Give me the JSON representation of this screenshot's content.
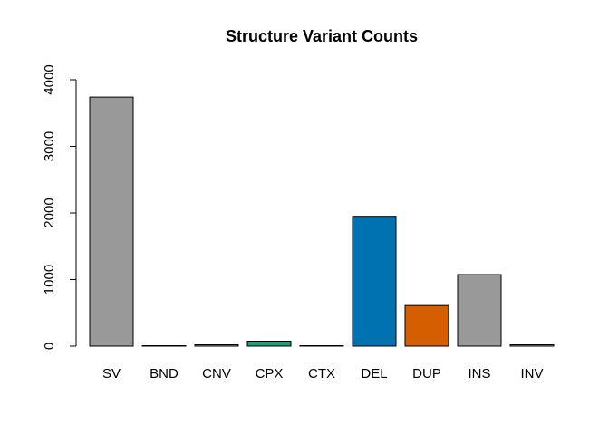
{
  "chart_data": {
    "type": "bar",
    "title": "Structure Variant Counts",
    "xlabel": "",
    "ylabel": "",
    "categories": [
      "SV",
      "BND",
      "CNV",
      "CPX",
      "CTX",
      "DEL",
      "DUP",
      "INS",
      "INV"
    ],
    "values": [
      3740,
      5,
      20,
      75,
      5,
      1950,
      610,
      1075,
      20
    ],
    "colors": [
      "#999999",
      "#999999",
      "#999999",
      "#1b9e77",
      "#999999",
      "#0072b2",
      "#d55e00",
      "#999999",
      "#999999"
    ],
    "ylim": [
      0,
      4000
    ],
    "yticks": [
      "0",
      "1000",
      "2000",
      "3000",
      "4000"
    ],
    "grid": false,
    "legend": "none"
  }
}
